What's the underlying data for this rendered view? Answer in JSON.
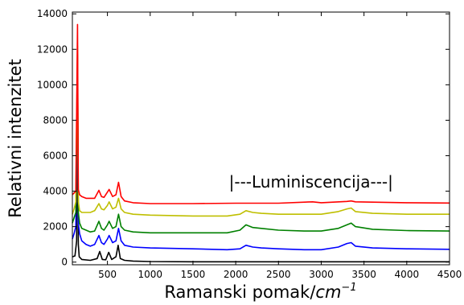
{
  "chart_data": {
    "type": "line",
    "title": "",
    "xlabel": "Ramanski pomak/",
    "xlabel_unit": "cm",
    "xlabel_exp": "−1",
    "ylabel": "Relativni intenzitet",
    "xlim": [
      90,
      4500
    ],
    "ylim": [
      -150,
      14100
    ],
    "x_ticks": [
      500,
      1000,
      1500,
      2000,
      2500,
      3000,
      3500,
      4000,
      4500
    ],
    "x_tick_labels": [
      "500",
      "1000",
      "1500",
      "2000",
      "2500",
      "3000",
      "3500",
      "4000",
      "4500"
    ],
    "y_ticks": [
      0,
      2000,
      4000,
      6000,
      8000,
      10000,
      12000,
      14000
    ],
    "y_tick_labels": [
      "0",
      "2000",
      "4000",
      "6000",
      "8000",
      "10000",
      "12000",
      "14000"
    ],
    "grid": false,
    "annotations": [
      {
        "text": "|---Luminiscencija---|",
        "x": 1920,
        "y": 4200
      }
    ],
    "series": [
      {
        "color": "#000000",
        "x": [
          90,
          120,
          140,
          150,
          160,
          170,
          200,
          300,
          380,
          410,
          440,
          480,
          515,
          550,
          600,
          625,
          650,
          700,
          800,
          1000,
          1500,
          2000,
          2500,
          3000,
          3500,
          4000,
          4500
        ],
        "y": [
          300,
          350,
          1200,
          9900,
          1000,
          300,
          150,
          100,
          200,
          600,
          150,
          130,
          550,
          150,
          300,
          950,
          200,
          100,
          60,
          30,
          20,
          20,
          20,
          20,
          20,
          20,
          20
        ]
      },
      {
        "color": "#0000ff",
        "x": [
          90,
          110,
          130,
          150,
          160,
          175,
          200,
          250,
          300,
          350,
          400,
          430,
          460,
          500,
          520,
          560,
          600,
          630,
          660,
          700,
          800,
          1000,
          1500,
          1900,
          2050,
          2120,
          2200,
          2300,
          2500,
          2800,
          3000,
          3200,
          3300,
          3350,
          3400,
          3600,
          4000,
          4500
        ],
        "y": [
          1300,
          1600,
          2000,
          10800,
          2200,
          1600,
          1200,
          1000,
          900,
          1000,
          1500,
          1100,
          1000,
          1300,
          1500,
          1100,
          1200,
          1900,
          1200,
          950,
          850,
          800,
          750,
          700,
          750,
          950,
          850,
          800,
          750,
          700,
          700,
          850,
          1050,
          1100,
          900,
          800,
          750,
          720
        ]
      },
      {
        "color": "#008000",
        "x": [
          90,
          110,
          130,
          150,
          160,
          175,
          200,
          250,
          300,
          350,
          400,
          430,
          460,
          500,
          520,
          560,
          600,
          630,
          660,
          700,
          800,
          1000,
          1500,
          1900,
          2050,
          2120,
          2200,
          2300,
          2500,
          2800,
          3000,
          3200,
          3300,
          3350,
          3400,
          3600,
          4000,
          4500
        ],
        "y": [
          2200,
          2500,
          2800,
          11700,
          2800,
          2200,
          1900,
          1800,
          1700,
          1750,
          2300,
          1900,
          1800,
          2100,
          2300,
          1900,
          2000,
          2700,
          2000,
          1800,
          1700,
          1650,
          1650,
          1650,
          1800,
          2100,
          1950,
          1900,
          1800,
          1750,
          1750,
          1900,
          2100,
          2200,
          2000,
          1850,
          1780,
          1750
        ]
      },
      {
        "color": "#bfbf00",
        "x": [
          90,
          110,
          130,
          150,
          160,
          175,
          200,
          250,
          300,
          350,
          400,
          430,
          460,
          500,
          520,
          560,
          600,
          630,
          660,
          700,
          800,
          1000,
          1500,
          1900,
          2050,
          2120,
          2200,
          2300,
          2500,
          2800,
          3000,
          3200,
          3300,
          3350,
          3400,
          3600,
          4000,
          4500
        ],
        "y": [
          2700,
          3000,
          3400,
          12200,
          3400,
          2900,
          2800,
          2800,
          2800,
          2900,
          3300,
          3000,
          2950,
          3200,
          3400,
          3000,
          3100,
          3600,
          3000,
          2800,
          2700,
          2650,
          2600,
          2600,
          2700,
          2900,
          2800,
          2750,
          2700,
          2700,
          2700,
          2850,
          3000,
          3050,
          2850,
          2750,
          2700,
          2700
        ]
      },
      {
        "color": "#ff0000",
        "x": [
          90,
          110,
          130,
          150,
          160,
          175,
          200,
          250,
          300,
          350,
          400,
          430,
          460,
          500,
          520,
          560,
          600,
          630,
          660,
          700,
          800,
          1000,
          1500,
          2000,
          2500,
          2900,
          3000,
          3300,
          3350,
          3400,
          4000,
          4500
        ],
        "y": [
          3800,
          3900,
          4000,
          13400,
          4100,
          3800,
          3700,
          3600,
          3600,
          3600,
          4050,
          3700,
          3650,
          3950,
          4100,
          3700,
          3800,
          4500,
          3700,
          3450,
          3350,
          3300,
          3300,
          3320,
          3320,
          3400,
          3350,
          3420,
          3450,
          3400,
          3350,
          3330
        ]
      }
    ]
  }
}
